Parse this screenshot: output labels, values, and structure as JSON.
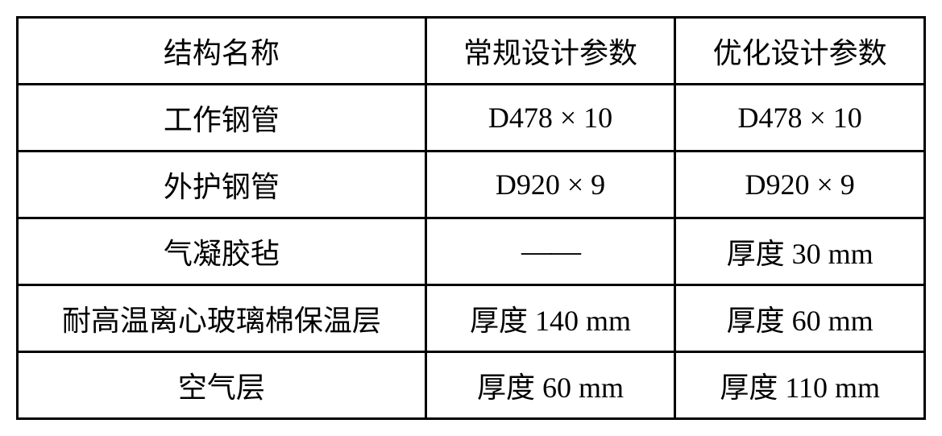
{
  "table": {
    "background_color": "#ffffff",
    "border_color": "#000000",
    "border_width": 3,
    "text_color": "#000000",
    "font_size": 36,
    "font_family": "SimSun, 宋体, Times New Roman, serif",
    "columns": [
      {
        "key": "name",
        "label": "结构名称",
        "width_pct": 45,
        "align": "center"
      },
      {
        "key": "conventional",
        "label": "常规设计参数",
        "width_pct": 27.5,
        "align": "center"
      },
      {
        "key": "optimized",
        "label": "优化设计参数",
        "width_pct": 27.5,
        "align": "center"
      }
    ],
    "rows": [
      {
        "name": "工作钢管",
        "conventional": "D478 × 10",
        "optimized": "D478 × 10"
      },
      {
        "name": "外护钢管",
        "conventional": "D920 × 9",
        "optimized": "D920 × 9"
      },
      {
        "name": "气凝胶毡",
        "conventional": "——",
        "optimized": "厚度 30 mm"
      },
      {
        "name": "耐高温离心玻璃棉保温层",
        "conventional": "厚度 140 mm",
        "optimized": "厚度 60 mm"
      },
      {
        "name": "空气层",
        "conventional": "厚度 60 mm",
        "optimized": "厚度 110 mm"
      }
    ]
  }
}
